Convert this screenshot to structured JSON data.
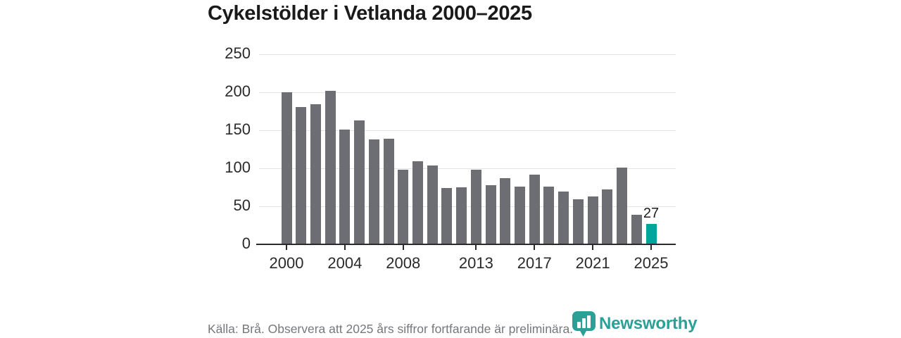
{
  "title": "Cykelstölder i Vetlanda 2000–2025",
  "chart_data": {
    "type": "bar",
    "title": "Cykelstölder i Vetlanda 2000–2025",
    "categories": [
      "2000",
      "2001",
      "2002",
      "2003",
      "2004",
      "2005",
      "2006",
      "2007",
      "2008",
      "2009",
      "2010",
      "2011",
      "2012",
      "2013",
      "2014",
      "2015",
      "2016",
      "2017",
      "2018",
      "2019",
      "2020",
      "2021",
      "2022",
      "2023",
      "2024",
      "2025"
    ],
    "values": [
      200,
      181,
      184,
      202,
      151,
      163,
      138,
      139,
      98,
      109,
      104,
      74,
      75,
      98,
      78,
      87,
      76,
      92,
      76,
      69,
      59,
      63,
      72,
      101,
      39,
      27
    ],
    "xlabel": "",
    "ylabel": "",
    "ylim": [
      0,
      250
    ],
    "yticks": [
      0,
      50,
      100,
      150,
      200,
      250
    ],
    "xticks": [
      "2000",
      "2004",
      "2008",
      "2013",
      "2017",
      "2021",
      "2025"
    ],
    "grid": true,
    "legend": false,
    "bar_color": "#6d6d74",
    "highlight_color": "#00a69c",
    "highlight_index": 25,
    "annotation": {
      "index": 25,
      "text": "27"
    }
  },
  "footer": {
    "source_note": "Källa: Brå. Observera att 2025 års siffror fortfarande är preliminära.",
    "brand_name": "Newsworthy",
    "brand_color": "#2aa197"
  }
}
